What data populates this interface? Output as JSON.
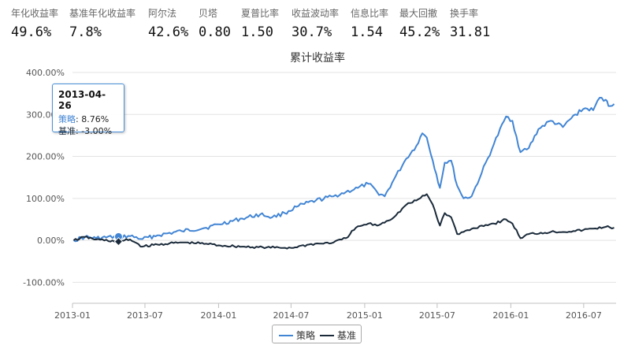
{
  "metrics": [
    {
      "label": "年化收益率",
      "value": "49.6%"
    },
    {
      "label": "基准年化收益率",
      "value": "7.8%"
    },
    {
      "label": "阿尔法",
      "value": "42.6%"
    },
    {
      "label": "贝塔",
      "value": "0.80"
    },
    {
      "label": "夏普比率",
      "value": "1.50"
    },
    {
      "label": "收益波动率",
      "value": "30.7%"
    },
    {
      "label": "信息比率",
      "value": "1.54"
    },
    {
      "label": "最大回撤",
      "value": "45.2%"
    },
    {
      "label": "换手率",
      "value": "31.81"
    }
  ],
  "tooltip": {
    "date": "2013-04-26",
    "strategy_label": "策略",
    "strategy_value": "8.76%",
    "benchmark_label": "基准",
    "benchmark_value": "-3.00%"
  },
  "chart_data": {
    "type": "line",
    "title": "累计收益率",
    "ylim": [
      -150,
      400
    ],
    "yticks": [
      -100,
      0,
      100,
      200,
      300,
      400
    ],
    "ytick_labels": [
      "-100.00%",
      "0.00%",
      "100.00%",
      "200.00%",
      "300.00%",
      "400.00%"
    ],
    "xlim": [
      "2013-01-01",
      "2016-09-20"
    ],
    "xticks": [
      "2013-01-01",
      "2013-07-01",
      "2014-01-01",
      "2014-07-01",
      "2015-01-01",
      "2015-07-01",
      "2016-01-01",
      "2016-07-01"
    ],
    "xtick_labels": [
      "2013-01",
      "2013-07",
      "2014-01",
      "2014-07",
      "2015-01",
      "2015-07",
      "2016-01",
      "2016-07"
    ],
    "legend_position": "bottom-center",
    "highlight": {
      "x": "2013-04-26",
      "strategy": 8.76,
      "benchmark": -3.0
    },
    "series": [
      {
        "name": "策略",
        "color": "#4285d4",
        "points": [
          [
            "2013-01-04",
            0
          ],
          [
            "2013-02-01",
            8
          ],
          [
            "2013-03-01",
            5
          ],
          [
            "2013-04-26",
            8.76
          ],
          [
            "2013-05-25",
            10
          ],
          [
            "2013-06-25",
            3
          ],
          [
            "2013-08-01",
            12
          ],
          [
            "2013-10-01",
            22
          ],
          [
            "2013-12-01",
            30
          ],
          [
            "2014-01-01",
            38
          ],
          [
            "2014-03-01",
            52
          ],
          [
            "2014-04-15",
            62
          ],
          [
            "2014-05-15",
            55
          ],
          [
            "2014-06-15",
            65
          ],
          [
            "2014-07-15",
            80
          ],
          [
            "2014-09-01",
            95
          ],
          [
            "2014-10-15",
            105
          ],
          [
            "2014-11-15",
            115
          ],
          [
            "2014-12-15",
            125
          ],
          [
            "2015-01-10",
            135
          ],
          [
            "2015-02-01",
            115
          ],
          [
            "2015-02-20",
            105
          ],
          [
            "2015-03-15",
            145
          ],
          [
            "2015-04-15",
            195
          ],
          [
            "2015-05-10",
            225
          ],
          [
            "2015-05-25",
            255
          ],
          [
            "2015-06-05",
            245
          ],
          [
            "2015-06-20",
            190
          ],
          [
            "2015-07-08",
            125
          ],
          [
            "2015-07-20",
            185
          ],
          [
            "2015-08-05",
            190
          ],
          [
            "2015-08-20",
            130
          ],
          [
            "2015-09-05",
            100
          ],
          [
            "2015-09-25",
            105
          ],
          [
            "2015-10-20",
            160
          ],
          [
            "2015-11-20",
            230
          ],
          [
            "2015-12-20",
            295
          ],
          [
            "2016-01-05",
            285
          ],
          [
            "2016-01-25",
            210
          ],
          [
            "2016-02-15",
            220
          ],
          [
            "2016-03-10",
            265
          ],
          [
            "2016-04-10",
            285
          ],
          [
            "2016-05-10",
            270
          ],
          [
            "2016-06-10",
            300
          ],
          [
            "2016-07-05",
            315
          ],
          [
            "2016-07-25",
            310
          ],
          [
            "2016-08-10",
            340
          ],
          [
            "2016-08-25",
            335
          ],
          [
            "2016-09-01",
            320
          ],
          [
            "2016-09-15",
            325
          ]
        ]
      },
      {
        "name": "基准",
        "color": "#1a2a3a",
        "points": [
          [
            "2013-01-04",
            0
          ],
          [
            "2013-02-01",
            8
          ],
          [
            "2013-03-01",
            2
          ],
          [
            "2013-04-26",
            -3.0
          ],
          [
            "2013-05-25",
            2
          ],
          [
            "2013-06-25",
            -15
          ],
          [
            "2013-08-01",
            -10
          ],
          [
            "2013-10-01",
            -5
          ],
          [
            "2013-12-01",
            -8
          ],
          [
            "2014-01-01",
            -12
          ],
          [
            "2014-03-01",
            -15
          ],
          [
            "2014-05-01",
            -17
          ],
          [
            "2014-07-01",
            -18
          ],
          [
            "2014-08-15",
            -10
          ],
          [
            "2014-10-15",
            -5
          ],
          [
            "2014-11-15",
            5
          ],
          [
            "2014-12-10",
            30
          ],
          [
            "2015-01-10",
            40
          ],
          [
            "2015-02-01",
            35
          ],
          [
            "2015-03-15",
            55
          ],
          [
            "2015-04-15",
            85
          ],
          [
            "2015-05-10",
            95
          ],
          [
            "2015-06-05",
            110
          ],
          [
            "2015-06-20",
            85
          ],
          [
            "2015-07-08",
            35
          ],
          [
            "2015-07-20",
            65
          ],
          [
            "2015-08-05",
            55
          ],
          [
            "2015-08-20",
            15
          ],
          [
            "2015-09-05",
            20
          ],
          [
            "2015-10-20",
            35
          ],
          [
            "2015-11-20",
            40
          ],
          [
            "2015-12-20",
            50
          ],
          [
            "2016-01-05",
            40
          ],
          [
            "2016-01-25",
            5
          ],
          [
            "2016-02-15",
            15
          ],
          [
            "2016-04-10",
            20
          ],
          [
            "2016-06-10",
            22
          ],
          [
            "2016-07-25",
            28
          ],
          [
            "2016-08-25",
            32
          ],
          [
            "2016-09-15",
            30
          ]
        ]
      }
    ]
  }
}
